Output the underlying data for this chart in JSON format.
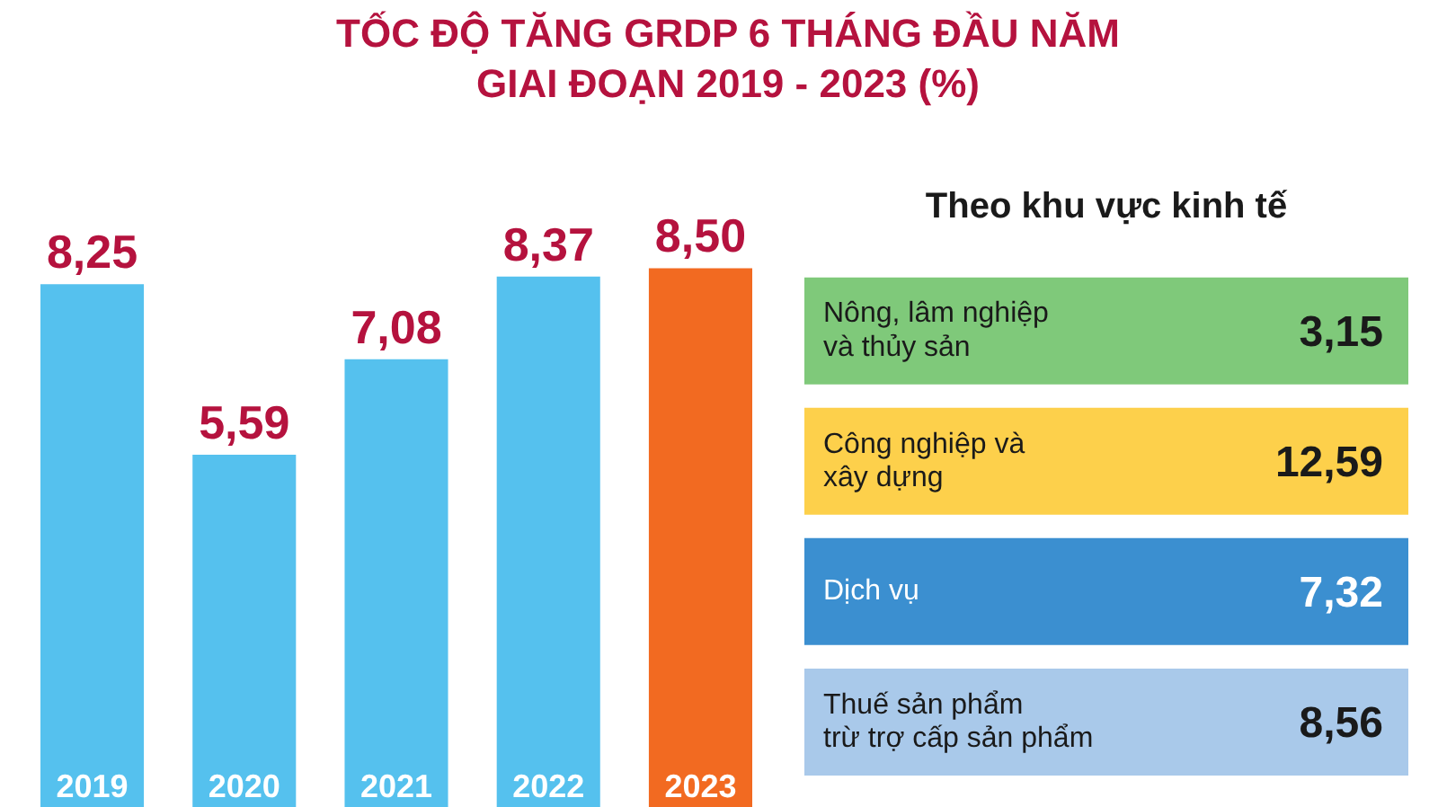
{
  "chart_data": [
    {
      "type": "bar",
      "title": "TỐC ĐỘ TĂNG GRDP 6 THÁNG ĐẦU NĂM\nGIAI ĐOẠN 2019 - 2023 (%)",
      "categories": [
        "2019",
        "2020",
        "2021",
        "2022",
        "2023"
      ],
      "values": [
        8.25,
        5.59,
        7.08,
        8.37,
        8.5
      ],
      "colors": [
        "#55c1ee",
        "#55c1ee",
        "#55c1ee",
        "#55c1ee",
        "#f26a21"
      ],
      "value_labels": [
        "8,25",
        "5,59",
        "7,08",
        "8,37",
        "8,50"
      ]
    },
    {
      "type": "other",
      "title": "Theo khu vực kinh tế",
      "categories": [
        "Nông, lâm nghiệp\nvà thủy sản",
        "Công nghiệp và\nxây dựng",
        "Dịch vụ",
        "Thuế sản phẩm\ntrừ trợ cấp sản phẩm"
      ],
      "value_labels": [
        "3,15",
        "12,59",
        "7,32",
        "8,56"
      ],
      "colors": [
        "#7fc97a",
        "#fdd04b",
        "#3b8fd0",
        "#a9c9ea"
      ]
    }
  ]
}
